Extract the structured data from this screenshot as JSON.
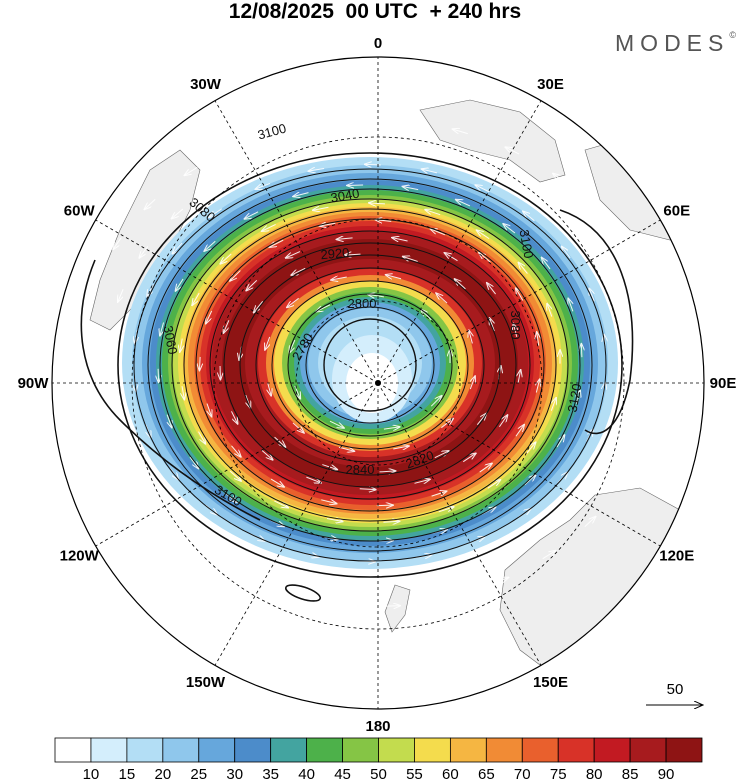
{
  "title": "12/08/2025  00 UTC  + 240 hrs",
  "brand": "MODES",
  "brand_mark": "©",
  "longitude_labels": [
    "0",
    "30E",
    "60E",
    "90E",
    "120E",
    "150E",
    "180",
    "150W",
    "120W",
    "90W",
    "60W",
    "30W"
  ],
  "contour_labels": [
    "3100",
    "3040",
    "3080",
    "2920",
    "2800",
    "2780",
    "3060",
    "3100",
    "3080",
    "3120",
    "2820",
    "2840",
    "3100"
  ],
  "reference_vector": {
    "label": "50"
  },
  "colorbar": {
    "ticks": [
      "10",
      "15",
      "20",
      "25",
      "30",
      "35",
      "40",
      "45",
      "50",
      "55",
      "60",
      "65",
      "70",
      "75",
      "80",
      "85",
      "90"
    ],
    "colors": [
      "#ffffff",
      "#d4eefc",
      "#b3def5",
      "#8fc7ec",
      "#66a7dc",
      "#4c8cca",
      "#43a4a0",
      "#4db14a",
      "#85c545",
      "#c3dc4e",
      "#f4dc4d",
      "#f5b642",
      "#f18b35",
      "#e9602d",
      "#d83228",
      "#c21a22",
      "#a71b1e",
      "#8e1414"
    ]
  },
  "colors": {
    "land": "#eeeeee",
    "graticule": "#000000",
    "contour": "#111111",
    "vectors": "#ffffff"
  }
}
